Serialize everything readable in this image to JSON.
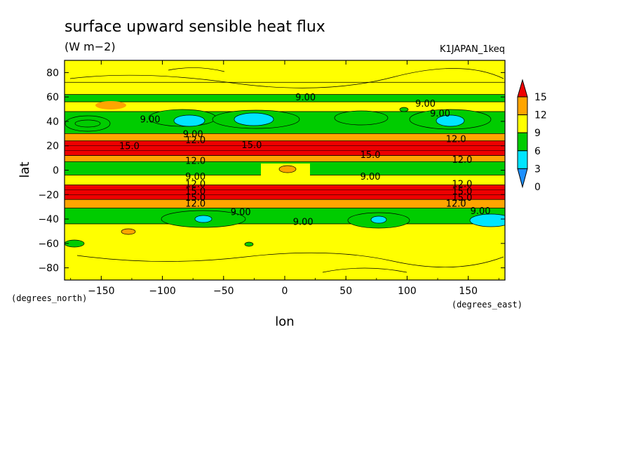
{
  "chart_data": {
    "type": "heatmap",
    "title": "surface upward sensible heat flux",
    "units": "(W m−2)",
    "run_label": "K1JAPAN_1keq",
    "xlabel": "lon",
    "ylabel": "lat",
    "x_unit_label": "(degrees_east)",
    "y_unit_label": "(degrees_north)",
    "xlim": [
      -180,
      180
    ],
    "ylim": [
      -90,
      90
    ],
    "x_ticks": [
      -150,
      -100,
      -50,
      0,
      50,
      100,
      150
    ],
    "x_tick_labels": [
      "−150",
      "−100",
      "−50",
      "0",
      "50",
      "100",
      "150"
    ],
    "y_ticks": [
      80,
      60,
      40,
      20,
      0,
      -20,
      -40,
      -60,
      -80
    ],
    "y_tick_labels": [
      "80",
      "60",
      "40",
      "20",
      "0",
      "−20",
      "−40",
      "−60",
      "−80"
    ],
    "colorbar": {
      "levels": [
        0,
        3,
        6,
        9,
        12,
        15
      ],
      "labels": [
        "0",
        "3",
        "6",
        "9",
        "12",
        "15"
      ],
      "colors": [
        "#1e90ff",
        "#00e5ff",
        "#00cc00",
        "#ffff00",
        "#ffa500",
        "#ee0000"
      ],
      "extend": "both"
    },
    "bands": [
      {
        "lat": [
          72,
          90
        ],
        "value_range": "9-12"
      },
      {
        "lat": [
          62,
          72
        ],
        "value_range": "9-12"
      },
      {
        "lat": [
          56,
          62
        ],
        "value_range": "6-9"
      },
      {
        "lat": [
          48,
          56
        ],
        "value_range": "9-12"
      },
      {
        "lat": [
          30,
          48
        ],
        "value_range": "6-9"
      },
      {
        "lat": [
          24,
          30
        ],
        "value_range": "12-15"
      },
      {
        "lat": [
          12,
          24
        ],
        "value_range": "15+"
      },
      {
        "lat": [
          7,
          12
        ],
        "value_range": "12-15"
      },
      {
        "lat": [
          -4,
          7
        ],
        "value_range": "6-9"
      },
      {
        "lat": [
          -12,
          -4
        ],
        "value_range": "9-12"
      },
      {
        "lat": [
          -24,
          -12
        ],
        "value_range": "15+"
      },
      {
        "lat": [
          -31,
          -24
        ],
        "value_range": "12-15"
      },
      {
        "lat": [
          -44,
          -31
        ],
        "value_range": "6-9"
      },
      {
        "lat": [
          -90,
          -44
        ],
        "value_range": "9-12"
      }
    ],
    "contour_labels": [
      {
        "text": "9.00",
        "lon": 17,
        "lat": 60
      },
      {
        "text": "9.00",
        "lon": 115,
        "lat": 55
      },
      {
        "text": "9.00",
        "lon": 127,
        "lat": 47
      },
      {
        "text": "9.00",
        "lon": -110,
        "lat": 42
      },
      {
        "text": "9.00",
        "lon": -75,
        "lat": 30
      },
      {
        "text": "12.0",
        "lon": -73,
        "lat": 25
      },
      {
        "text": "15.0",
        "lon": -127,
        "lat": 20
      },
      {
        "text": "15.0",
        "lon": -27,
        "lat": 21
      },
      {
        "text": "12.0",
        "lon": 140,
        "lat": 26
      },
      {
        "text": "15.0",
        "lon": 70,
        "lat": 13
      },
      {
        "text": "12.0",
        "lon": 145,
        "lat": 9
      },
      {
        "text": "12.0",
        "lon": -73,
        "lat": 8
      },
      {
        "text": "9.00",
        "lon": 70,
        "lat": -5
      },
      {
        "text": "9.00",
        "lon": -73,
        "lat": -5
      },
      {
        "text": "12.0",
        "lon": -73,
        "lat": -11
      },
      {
        "text": "12.0",
        "lon": 145,
        "lat": -11
      },
      {
        "text": "15.0",
        "lon": -73,
        "lat": -17
      },
      {
        "text": "15.0",
        "lon": 145,
        "lat": -17
      },
      {
        "text": "15.0",
        "lon": -73,
        "lat": -22
      },
      {
        "text": "15.0",
        "lon": 145,
        "lat": -22
      },
      {
        "text": "12.0",
        "lon": -73,
        "lat": -27
      },
      {
        "text": "12.0",
        "lon": 140,
        "lat": -27
      },
      {
        "text": "9.00",
        "lon": -36,
        "lat": -34
      },
      {
        "text": "9.00",
        "lon": 160,
        "lat": -33
      },
      {
        "text": "9.00",
        "lon": 15,
        "lat": -42
      }
    ]
  }
}
